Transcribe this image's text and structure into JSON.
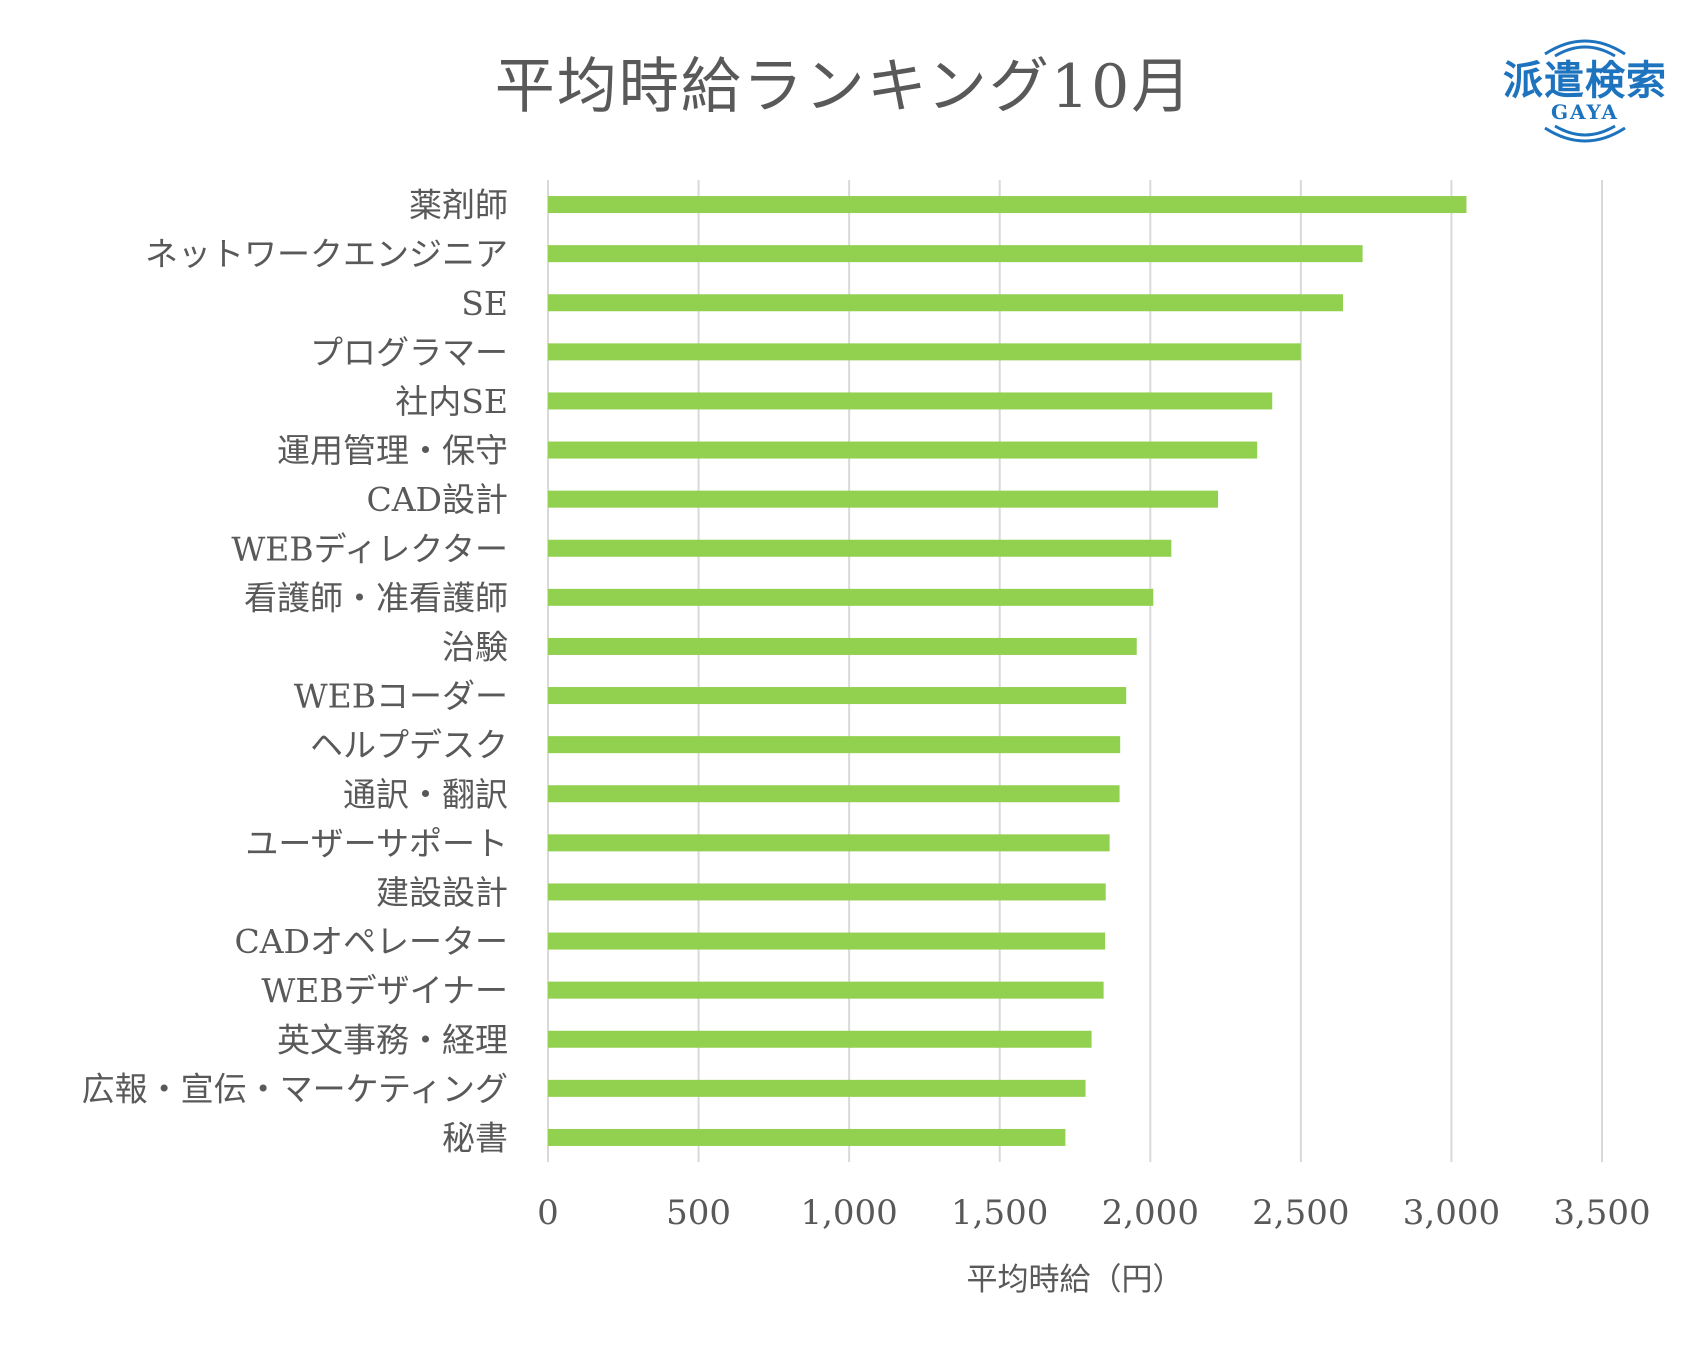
{
  "logo": {
    "main": "派遣検索",
    "sub": "GAYA",
    "color": "#1e73be"
  },
  "chart_data": {
    "type": "bar",
    "orientation": "horizontal",
    "title": "平均時給ランキング10月",
    "xlabel": "平均時給（円）",
    "ylabel": "",
    "xlim": [
      0,
      3500
    ],
    "xticks": [
      0,
      500,
      1000,
      1500,
      2000,
      2500,
      3000,
      3500
    ],
    "xtick_labels": [
      "0",
      "500",
      "1,000",
      "1,500",
      "2,000",
      "2,500",
      "3,000",
      "3,500"
    ],
    "grid": true,
    "bar_color": "#92d050",
    "categories": [
      "薬剤師",
      "ネットワークエンジニア",
      "SE",
      "プログラマー",
      "社内SE",
      "運用管理・保守",
      "CAD設計",
      "WEBディレクター",
      "看護師・准看護師",
      "治験",
      "WEBコーダー",
      "ヘルプデスク",
      "通訳・翻訳",
      "ユーザーサポート",
      "建設設計",
      "CADオペレーター",
      "WEBデザイナー",
      "英文事務・経理",
      "広報・宣伝・マーケティング",
      "秘書"
    ],
    "values": [
      3050,
      2705,
      2640,
      2500,
      2405,
      2355,
      2225,
      2070,
      2010,
      1955,
      1920,
      1900,
      1898,
      1865,
      1852,
      1850,
      1845,
      1805,
      1785,
      1718
    ]
  }
}
